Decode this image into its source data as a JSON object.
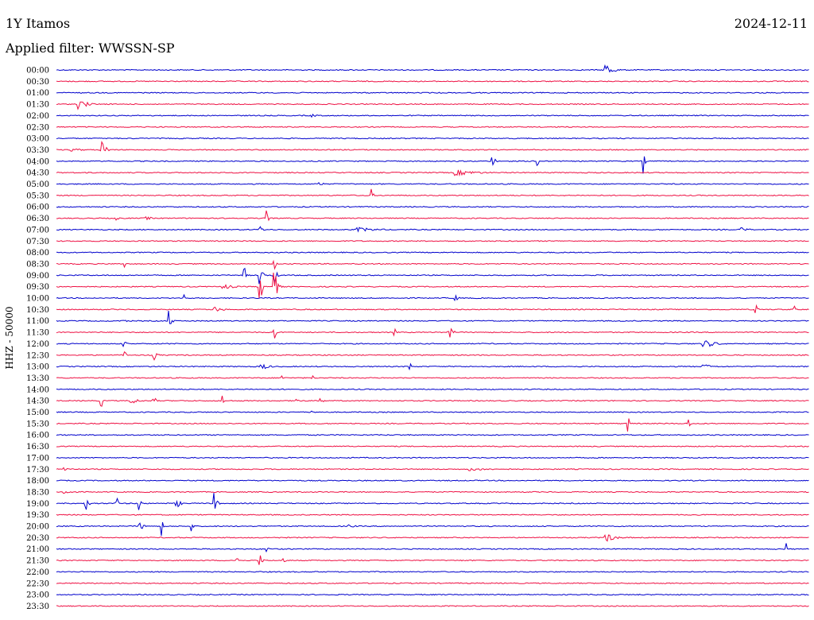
{
  "header": {
    "station": "1Y Itamos",
    "date": "2024-12-11",
    "filter": "Applied filter: WWSSN-SP",
    "channel_label": "HHZ - 50000"
  },
  "colors": {
    "blue": "#0000cc",
    "red": "#ee1144"
  },
  "rows": [
    {
      "time": "00:00",
      "color": "blue",
      "events": [
        {
          "x": 0.73,
          "amp": 10,
          "w": 0.018
        }
      ]
    },
    {
      "time": "00:30",
      "color": "red",
      "events": [
        {
          "x": 0.15,
          "amp": 2,
          "w": 0.01
        }
      ]
    },
    {
      "time": "01:00",
      "color": "blue",
      "events": []
    },
    {
      "time": "01:30",
      "color": "red",
      "events": [
        {
          "x": 0.03,
          "amp": 8,
          "w": 0.02
        }
      ]
    },
    {
      "time": "02:00",
      "color": "blue",
      "events": [
        {
          "x": 0.34,
          "amp": 2,
          "w": 0.02
        }
      ]
    },
    {
      "time": "02:30",
      "color": "red",
      "events": []
    },
    {
      "time": "03:00",
      "color": "blue",
      "events": []
    },
    {
      "time": "03:30",
      "color": "red",
      "events": [
        {
          "x": 0.06,
          "amp": 12,
          "w": 0.012
        },
        {
          "x": 0.02,
          "amp": 2,
          "w": 0.04
        }
      ]
    },
    {
      "time": "04:00",
      "color": "blue",
      "events": [
        {
          "x": 0.58,
          "amp": 8,
          "w": 0.006
        },
        {
          "x": 0.64,
          "amp": 14,
          "w": 0.002
        },
        {
          "x": 0.78,
          "amp": 16,
          "w": 0.003
        }
      ]
    },
    {
      "time": "04:30",
      "color": "red",
      "events": [
        {
          "x": 0.53,
          "amp": 4,
          "w": 0.06
        }
      ]
    },
    {
      "time": "05:00",
      "color": "blue",
      "events": [
        {
          "x": 0.35,
          "amp": 4,
          "w": 0.008
        }
      ]
    },
    {
      "time": "05:30",
      "color": "red",
      "events": [
        {
          "x": 0.42,
          "amp": 8,
          "w": 0.002
        }
      ]
    },
    {
      "time": "06:00",
      "color": "blue",
      "events": []
    },
    {
      "time": "06:30",
      "color": "red",
      "events": [
        {
          "x": 0.08,
          "amp": 8,
          "w": 0.003
        },
        {
          "x": 0.12,
          "amp": 4,
          "w": 0.01
        },
        {
          "x": 0.28,
          "amp": 10,
          "w": 0.004
        }
      ]
    },
    {
      "time": "07:00",
      "color": "blue",
      "events": [
        {
          "x": 0.27,
          "amp": 5,
          "w": 0.01
        },
        {
          "x": 0.4,
          "amp": 3,
          "w": 0.06
        },
        {
          "x": 0.91,
          "amp": 3,
          "w": 0.02
        }
      ]
    },
    {
      "time": "07:30",
      "color": "red",
      "events": []
    },
    {
      "time": "08:00",
      "color": "blue",
      "events": []
    },
    {
      "time": "08:30",
      "color": "red",
      "events": [
        {
          "x": 0.09,
          "amp": 8,
          "w": 0.003
        },
        {
          "x": 0.29,
          "amp": 8,
          "w": 0.003
        }
      ]
    },
    {
      "time": "09:00",
      "color": "blue",
      "events": [
        {
          "x": 0.25,
          "amp": 10,
          "w": 0.004
        },
        {
          "x": 0.27,
          "amp": 14,
          "w": 0.008
        },
        {
          "x": 0.29,
          "amp": 10,
          "w": 0.006
        }
      ]
    },
    {
      "time": "09:30",
      "color": "red",
      "events": [
        {
          "x": 0.27,
          "amp": 22,
          "w": 0.008
        },
        {
          "x": 0.29,
          "amp": 20,
          "w": 0.008
        },
        {
          "x": 0.22,
          "amp": 4,
          "w": 0.03
        }
      ]
    },
    {
      "time": "10:00",
      "color": "blue",
      "events": [
        {
          "x": 0.17,
          "amp": 8,
          "w": 0.003
        },
        {
          "x": 0.53,
          "amp": 4,
          "w": 0.01
        }
      ]
    },
    {
      "time": "10:30",
      "color": "red",
      "events": [
        {
          "x": 0.21,
          "amp": 4,
          "w": 0.02
        },
        {
          "x": 0.93,
          "amp": 6,
          "w": 0.004
        },
        {
          "x": 0.98,
          "amp": 6,
          "w": 0.003
        }
      ]
    },
    {
      "time": "11:00",
      "color": "blue",
      "events": [
        {
          "x": 0.15,
          "amp": 14,
          "w": 0.006
        },
        {
          "x": 0.09,
          "amp": 4,
          "w": 0.006
        }
      ]
    },
    {
      "time": "11:30",
      "color": "red",
      "events": [
        {
          "x": 0.29,
          "amp": 16,
          "w": 0.002
        },
        {
          "x": 0.52,
          "amp": 12,
          "w": 0.01
        },
        {
          "x": 0.45,
          "amp": 4,
          "w": 0.003
        }
      ]
    },
    {
      "time": "12:00",
      "color": "blue",
      "events": [
        {
          "x": 0.09,
          "amp": 4,
          "w": 0.006
        },
        {
          "x": 0.86,
          "amp": 6,
          "w": 0.03
        }
      ]
    },
    {
      "time": "12:30",
      "color": "red",
      "events": [
        {
          "x": 0.09,
          "amp": 10,
          "w": 0.004
        },
        {
          "x": 0.13,
          "amp": 6,
          "w": 0.008
        }
      ]
    },
    {
      "time": "13:00",
      "color": "blue",
      "events": [
        {
          "x": 0.27,
          "amp": 6,
          "w": 0.02
        },
        {
          "x": 0.47,
          "amp": 6,
          "w": 0.003
        },
        {
          "x": 0.86,
          "amp": 3,
          "w": 0.03
        }
      ]
    },
    {
      "time": "13:30",
      "color": "red",
      "events": [
        {
          "x": 0.3,
          "amp": 8,
          "w": 0.003
        },
        {
          "x": 0.34,
          "amp": 4,
          "w": 0.004
        }
      ]
    },
    {
      "time": "14:00",
      "color": "blue",
      "events": []
    },
    {
      "time": "14:30",
      "color": "red",
      "events": [
        {
          "x": 0.06,
          "amp": 8,
          "w": 0.003
        },
        {
          "x": 0.1,
          "amp": 4,
          "w": 0.02
        },
        {
          "x": 0.13,
          "amp": 12,
          "w": 0.003
        },
        {
          "x": 0.22,
          "amp": 10,
          "w": 0.003
        },
        {
          "x": 0.32,
          "amp": 12,
          "w": 0.003
        },
        {
          "x": 0.35,
          "amp": 8,
          "w": 0.006
        }
      ]
    },
    {
      "time": "15:00",
      "color": "blue",
      "events": [
        {
          "x": 0.34,
          "amp": 2,
          "w": 0.02
        }
      ]
    },
    {
      "time": "15:30",
      "color": "red",
      "events": [
        {
          "x": 0.76,
          "amp": 14,
          "w": 0.003
        },
        {
          "x": 0.84,
          "amp": 10,
          "w": 0.003
        }
      ]
    },
    {
      "time": "16:00",
      "color": "blue",
      "events": []
    },
    {
      "time": "16:30",
      "color": "red",
      "events": []
    },
    {
      "time": "17:00",
      "color": "blue",
      "events": []
    },
    {
      "time": "17:30",
      "color": "red",
      "events": [
        {
          "x": 0.01,
          "amp": 3,
          "w": 0.02
        },
        {
          "x": 0.55,
          "amp": 2,
          "w": 0.08
        }
      ]
    },
    {
      "time": "18:00",
      "color": "blue",
      "events": []
    },
    {
      "time": "18:30",
      "color": "red",
      "events": [
        {
          "x": 0.01,
          "amp": 4,
          "w": 0.02
        }
      ]
    },
    {
      "time": "19:00",
      "color": "blue",
      "events": [
        {
          "x": 0.04,
          "amp": 8,
          "w": 0.01
        },
        {
          "x": 0.08,
          "amp": 14,
          "w": 0.003
        },
        {
          "x": 0.11,
          "amp": 12,
          "w": 0.004
        },
        {
          "x": 0.16,
          "amp": 6,
          "w": 0.01
        },
        {
          "x": 0.21,
          "amp": 14,
          "w": 0.006
        }
      ]
    },
    {
      "time": "19:30",
      "color": "red",
      "events": []
    },
    {
      "time": "20:00",
      "color": "blue",
      "events": [
        {
          "x": 0.11,
          "amp": 6,
          "w": 0.012
        },
        {
          "x": 0.14,
          "amp": 14,
          "w": 0.003
        },
        {
          "x": 0.18,
          "amp": 8,
          "w": 0.004
        },
        {
          "x": 0.39,
          "amp": 2,
          "w": 0.02
        }
      ]
    },
    {
      "time": "20:30",
      "color": "red",
      "events": [
        {
          "x": 0.73,
          "amp": 6,
          "w": 0.025
        }
      ]
    },
    {
      "time": "21:00",
      "color": "blue",
      "events": [
        {
          "x": 0.28,
          "amp": 8,
          "w": 0.003
        },
        {
          "x": 0.97,
          "amp": 8,
          "w": 0.003
        }
      ]
    },
    {
      "time": "21:30",
      "color": "red",
      "events": [
        {
          "x": 0.24,
          "amp": 8,
          "w": 0.003
        },
        {
          "x": 0.27,
          "amp": 10,
          "w": 0.006
        },
        {
          "x": 0.3,
          "amp": 6,
          "w": 0.006
        }
      ]
    },
    {
      "time": "22:00",
      "color": "blue",
      "events": []
    },
    {
      "time": "22:30",
      "color": "red",
      "events": []
    },
    {
      "time": "23:00",
      "color": "blue",
      "events": []
    },
    {
      "time": "23:30",
      "color": "red",
      "events": []
    }
  ]
}
